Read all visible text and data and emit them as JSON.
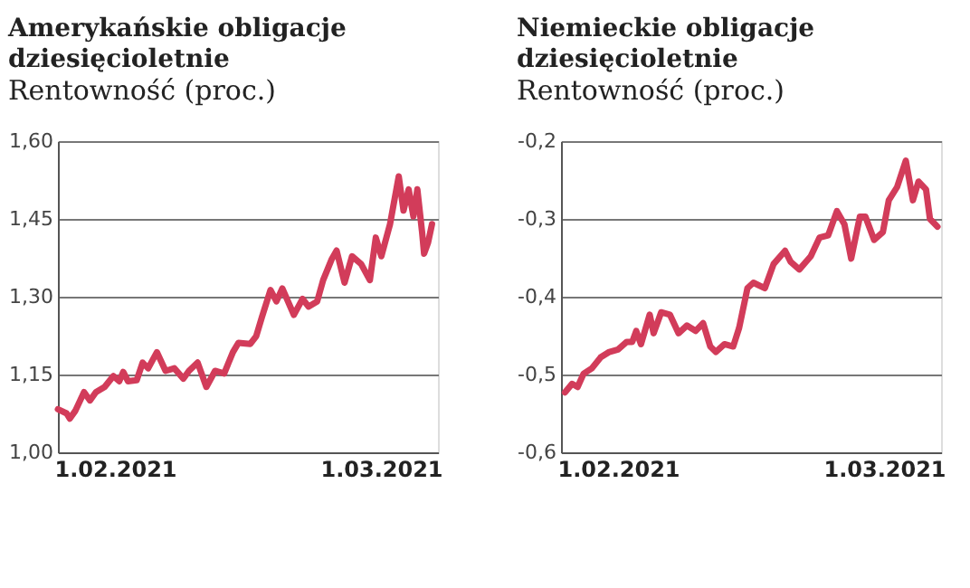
{
  "chart_data": [
    {
      "type": "line",
      "title": "Amerykańskie obligacje dziesięcioletnie",
      "subtitle": "Rentowność (proc.)",
      "x": [
        "2021-01-26T00:00",
        "2021-01-26T22:00",
        "2021-01-27T06:00",
        "2021-01-27T20:00",
        "2021-01-28T18:00",
        "2021-01-29T09:00",
        "2021-01-30T00:00",
        "2021-01-30T22:00",
        "2021-01-31T20:00",
        "2021-02-01T11:00",
        "2021-02-01T21:00",
        "2021-02-02T09:00",
        "2021-02-03T07:00",
        "2021-02-03T22:00",
        "2021-02-04T12:00",
        "2021-02-05T10:00",
        "2021-02-06T08:00",
        "2021-02-07T06:00",
        "2021-02-08T05:00",
        "2021-02-08T19:00",
        "2021-02-09T17:00",
        "2021-02-10T15:00",
        "2021-02-11T13:00",
        "2021-02-12T12:00",
        "2021-02-13T10:00",
        "2021-02-14T00:00",
        "2021-02-15T06:00",
        "2021-02-15T21:00",
        "2021-02-16T11:00",
        "2021-02-17T09:00",
        "2021-02-18T00:00",
        "2021-02-18T15:00",
        "2021-02-19T20:00",
        "2021-02-20T18:00",
        "2021-02-21T09:00",
        "2021-02-22T07:00",
        "2021-02-22T22:00",
        "2021-02-23T20:00",
        "2021-02-24T08:00",
        "2021-02-25T04:00",
        "2021-02-25T23:00",
        "2021-02-26T22:00",
        "2021-02-27T20:00",
        "2021-02-28T11:00",
        "2021-03-01T01:00",
        "2021-03-01T23:00",
        "2021-03-02T21:00",
        "2021-03-03T09:00",
        "2021-03-03T22:00",
        "2021-03-04T10:00",
        "2021-03-04T20:00",
        "2021-03-05T08:00",
        "2021-03-05T13:00",
        "2021-03-05T23:00",
        "2021-03-06T09:00"
      ],
      "series": [
        {
          "color": "#d23c5a",
          "values": [
            1.083,
            1.075,
            1.065,
            1.08,
            1.116,
            1.1,
            1.116,
            1.126,
            1.147,
            1.137,
            1.155,
            1.137,
            1.139,
            1.173,
            1.162,
            1.193,
            1.157,
            1.162,
            1.142,
            1.157,
            1.173,
            1.126,
            1.157,
            1.152,
            1.193,
            1.211,
            1.209,
            1.224,
            1.26,
            1.313,
            1.291,
            1.316,
            1.265,
            1.296,
            1.281,
            1.291,
            1.332,
            1.373,
            1.389,
            1.327,
            1.378,
            1.363,
            1.332,
            1.414,
            1.378,
            1.44,
            1.532,
            1.466,
            1.507,
            1.455,
            1.507,
            1.424,
            1.383,
            1.404,
            1.44
          ]
        }
      ],
      "xlim": [
        "2021-01-26",
        "2021-03-07"
      ],
      "xticks": [
        {
          "value": "2021-02-01",
          "label": "1.02.2021"
        },
        {
          "value": "2021-03-01",
          "label": "1.03.2021"
        }
      ],
      "ylim": [
        1.0,
        1.6
      ],
      "yticks": [
        {
          "value": 1.0,
          "label": "1,00"
        },
        {
          "value": 1.15,
          "label": "1,15"
        },
        {
          "value": 1.3,
          "label": "1,30"
        },
        {
          "value": 1.45,
          "label": "1,45"
        },
        {
          "value": 1.6,
          "label": "1,60"
        }
      ],
      "grid": "y"
    },
    {
      "type": "line",
      "title": "Niemieckie obligacje dziesięcioletnie",
      "subtitle": "Rentowność (proc.)",
      "x": [
        "2021-01-26T10:00",
        "2021-01-27T04:00",
        "2021-01-27T18:00",
        "2021-01-28T09:00",
        "2021-01-29T06:00",
        "2021-01-30T04:00",
        "2021-01-31T02:00",
        "2021-02-01T00:00",
        "2021-02-01T22:00",
        "2021-02-02T12:00",
        "2021-02-02T22:00",
        "2021-02-03T10:00",
        "2021-02-04T08:00",
        "2021-02-04T18:00",
        "2021-02-05T13:00",
        "2021-02-06T11:00",
        "2021-02-07T09:00",
        "2021-02-08T06:00",
        "2021-02-09T04:00",
        "2021-02-09T23:00",
        "2021-02-10T17:00",
        "2021-02-11T07:00",
        "2021-02-12T05:00",
        "2021-02-13T03:00",
        "2021-02-13T18:00",
        "2021-02-14T15:00",
        "2021-02-15T06:00",
        "2021-02-16T11:00",
        "2021-02-17T09:00",
        "2021-02-18T14:00",
        "2021-02-19T04:00",
        "2021-02-20T02:00",
        "2021-02-21T07:00",
        "2021-02-22T05:00",
        "2021-02-23T03:00",
        "2021-02-24T01:00",
        "2021-02-24T20:00",
        "2021-02-25T13:00",
        "2021-02-26T11:00",
        "2021-02-27T01:00",
        "2021-02-27T23:00",
        "2021-02-28T21:00",
        "2021-03-01T12:00",
        "2021-03-02T09:00",
        "2021-03-03T07:00",
        "2021-03-04T01:00",
        "2021-03-04T15:00",
        "2021-03-05T10:00",
        "2021-03-05T20:00",
        "2021-03-06T15:00"
      ],
      "series": [
        {
          "color": "#d23c5a",
          "values": [
            -0.523,
            -0.512,
            -0.516,
            -0.499,
            -0.492,
            -0.478,
            -0.471,
            -0.468,
            -0.458,
            -0.458,
            -0.444,
            -0.461,
            -0.423,
            -0.447,
            -0.42,
            -0.423,
            -0.447,
            -0.437,
            -0.444,
            -0.434,
            -0.464,
            -0.471,
            -0.461,
            -0.464,
            -0.44,
            -0.389,
            -0.382,
            -0.389,
            -0.358,
            -0.341,
            -0.355,
            -0.365,
            -0.348,
            -0.324,
            -0.321,
            -0.29,
            -0.307,
            -0.351,
            -0.297,
            -0.297,
            -0.327,
            -0.317,
            -0.276,
            -0.259,
            -0.225,
            -0.276,
            -0.252,
            -0.262,
            -0.3,
            -0.31
          ]
        }
      ],
      "xlim": [
        "2021-01-26",
        "2021-03-07"
      ],
      "xticks": [
        {
          "value": "2021-02-01",
          "label": "1.02.2021"
        },
        {
          "value": "2021-03-01",
          "label": "1.03.2021"
        }
      ],
      "ylim": [
        -0.6,
        -0.2
      ],
      "yticks": [
        {
          "value": -0.6,
          "label": "-0,6"
        },
        {
          "value": -0.5,
          "label": "-0,5"
        },
        {
          "value": -0.4,
          "label": "-0,4"
        },
        {
          "value": -0.3,
          "label": "-0,3"
        },
        {
          "value": -0.2,
          "label": "-0,2"
        }
      ],
      "grid": "y"
    }
  ]
}
